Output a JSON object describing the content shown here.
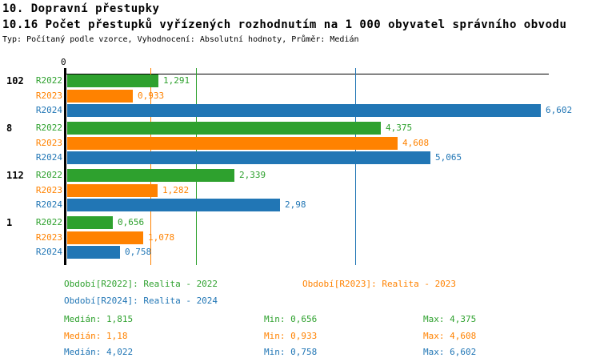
{
  "header": {
    "title": "10. Dopravní přestupky",
    "subtitle": "10.16 Počet přestupků vyřízených rozhodnutím na 1 000 obyvatel správního obvodu",
    "meta": "Typ: Počítaný podle vzorce, Vyhodnocení: Absolutní hodnoty, Průměr: Medián"
  },
  "colors": {
    "green": "#2ea12e",
    "orange": "#ff8200",
    "blue": "#2176b5",
    "axis": "#000000"
  },
  "chart_data": {
    "type": "bar",
    "orientation": "horizontal",
    "title": "10.16 Počet přestupků vyřízených rozhodnutím na 1 000 obyvatel správního obvodu",
    "axis_origin_label": "0",
    "xlim": [
      0,
      6.71
    ],
    "grid": false,
    "legend_position": "bottom",
    "categories": [
      "102",
      "8",
      "112",
      "1"
    ],
    "series": [
      {
        "name": "R2022",
        "color_key": "green",
        "values": [
          1.291,
          4.375,
          2.339,
          0.656
        ],
        "labels": [
          "1,291",
          "4,375",
          "2,339",
          "0,656"
        ],
        "median": 1.815
      },
      {
        "name": "R2023",
        "color_key": "orange",
        "values": [
          0.933,
          4.608,
          1.282,
          1.078
        ],
        "labels": [
          "0,933",
          "4,608",
          "1,282",
          "1,078"
        ],
        "median": 1.18
      },
      {
        "name": "R2024",
        "color_key": "blue",
        "values": [
          6.602,
          5.065,
          2.98,
          0.758
        ],
        "labels": [
          "6,602",
          "5,065",
          "2,98",
          "0,758"
        ],
        "median": 4.022
      }
    ]
  },
  "legend": {
    "items": [
      {
        "series": "R2022",
        "color_key": "green",
        "label": "Období[R2022]: Realita - 2022"
      },
      {
        "series": "R2023",
        "color_key": "orange",
        "label": "Období[R2023]: Realita - 2023"
      },
      {
        "series": "R2024",
        "color_key": "blue",
        "label": "Období[R2024]: Realita - 2024"
      }
    ]
  },
  "stats": {
    "rows": [
      {
        "series": "R2022",
        "color_key": "green",
        "median": "Medián: 1,815",
        "min": "Min: 0,656",
        "max": "Max: 4,375"
      },
      {
        "series": "R2023",
        "color_key": "orange",
        "median": "Medián: 1,18",
        "min": "Min: 0,933",
        "max": "Max: 4,608"
      },
      {
        "series": "R2024",
        "color_key": "blue",
        "median": "Medián: 4,022",
        "min": "Min: 0,758",
        "max": "Max: 6,602"
      }
    ]
  }
}
